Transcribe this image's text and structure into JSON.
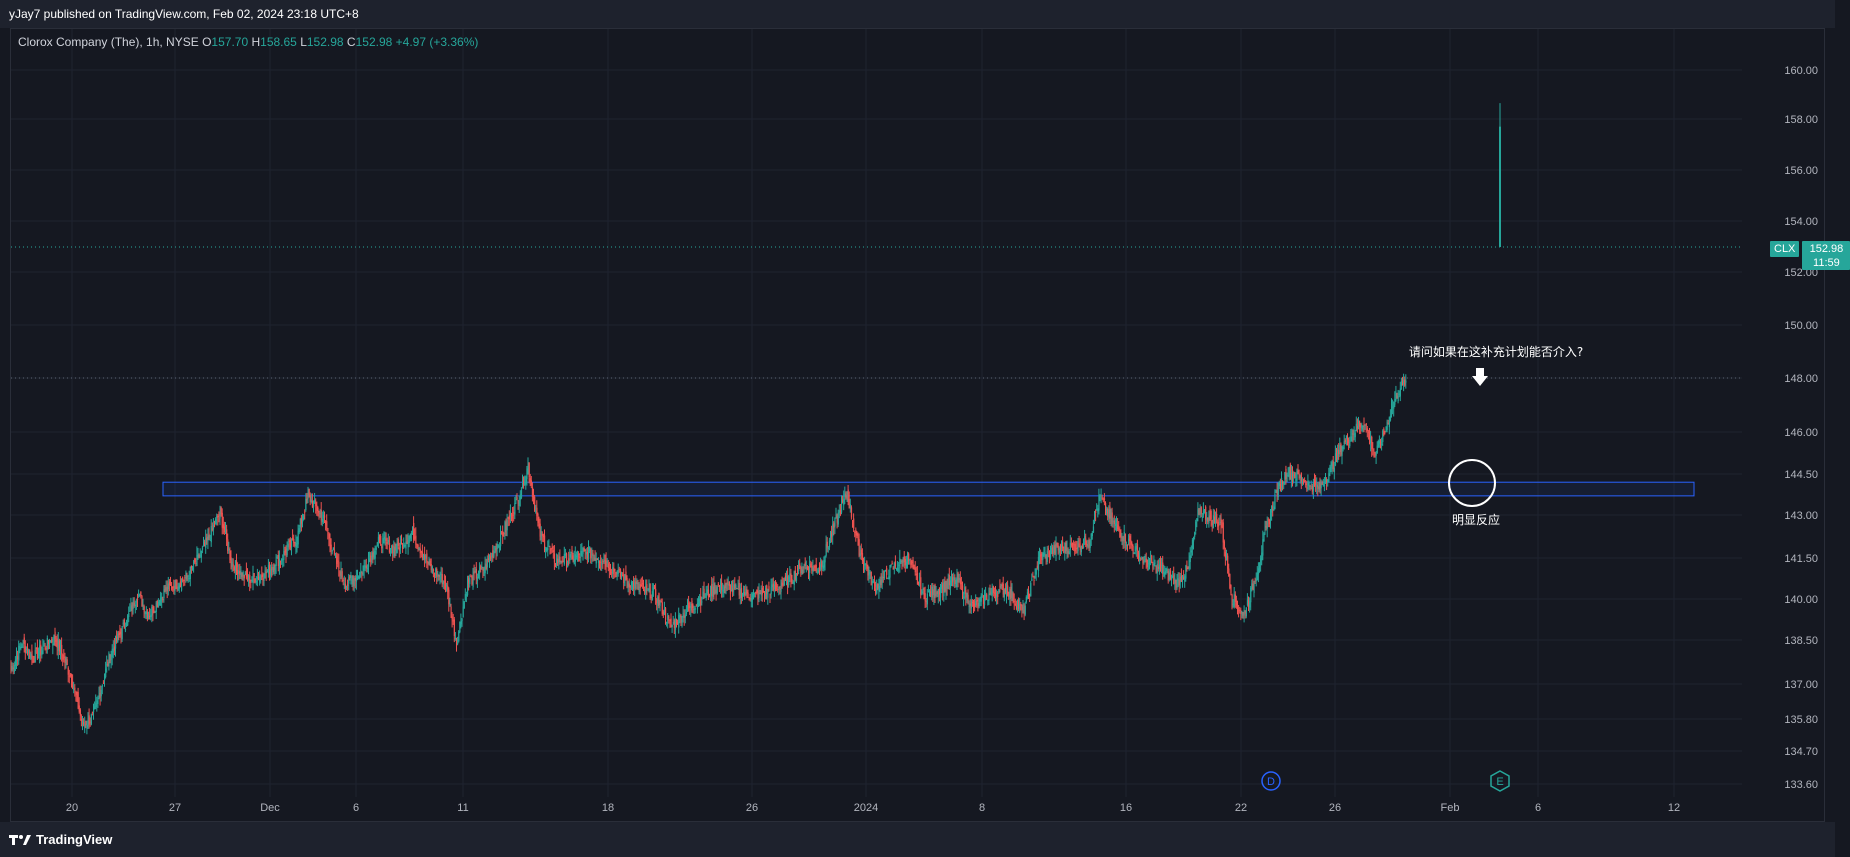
{
  "header": {
    "publisher_text": "yJay7 published on TradingView.com, Feb 02, 2024 23:18 UTC+8"
  },
  "legend": {
    "symbol_text": "Clorox Company (The), 1h, NYSE",
    "open_label": "O",
    "open_value": "157.70",
    "high_label": "H",
    "high_value": "158.65",
    "low_label": "L",
    "low_value": "152.98",
    "close_label": "C",
    "close_value": "152.98",
    "change": "+4.97 (+3.36%)"
  },
  "price_tag": {
    "symbol": "CLX",
    "price": "152.98",
    "countdown": "11:59"
  },
  "footer": {
    "brand": "TradingView"
  },
  "colors": {
    "background": "#151821",
    "up": "#26a69a",
    "down": "#ef5350",
    "zone": "#2962ff",
    "annotation": "#ffffff",
    "grid": "#1f2330",
    "axis_text": "#b2b5be"
  },
  "chart_data": {
    "type": "candlestick",
    "title": "",
    "y_ticks": [
      "160.00",
      "158.00",
      "156.00",
      "154.00",
      "152.00",
      "150.00",
      "148.00",
      "146.00",
      "144.50",
      "143.00",
      "141.50",
      "140.00",
      "138.50",
      "137.00",
      "135.80",
      "134.70",
      "133.60"
    ],
    "x_ticks": [
      "20",
      "27",
      "Dec",
      "6",
      "11",
      "18",
      "26",
      "2024",
      "8",
      "16",
      "22",
      "26",
      "Feb",
      "6",
      "12"
    ],
    "ylim": [
      133.1,
      161.1
    ],
    "support_zone": [
      143.7,
      144.2
    ],
    "current_price": 152.98,
    "horizontal_level": 148.0,
    "annotations": [
      {
        "text": "请问如果在这补充计划能否介入?",
        "role": "question"
      },
      {
        "text": "明显反应",
        "role": "circle-label"
      }
    ],
    "event_markers": [
      "D",
      "E"
    ],
    "close_path": [
      [
        0,
        137.5
      ],
      [
        10,
        138.4
      ],
      [
        20,
        137.9
      ],
      [
        40,
        138.6
      ],
      [
        55,
        137.2
      ],
      [
        65,
        135.6
      ],
      [
        75,
        135.9
      ],
      [
        90,
        138.0
      ],
      [
        105,
        139.2
      ],
      [
        115,
        140.2
      ],
      [
        125,
        139.4
      ],
      [
        140,
        140.3
      ],
      [
        160,
        140.8
      ],
      [
        175,
        141.8
      ],
      [
        190,
        143.1
      ],
      [
        200,
        141.4
      ],
      [
        215,
        140.7
      ],
      [
        230,
        140.9
      ],
      [
        245,
        141.5
      ],
      [
        260,
        142.2
      ],
      [
        270,
        143.7
      ],
      [
        285,
        142.8
      ],
      [
        295,
        141.4
      ],
      [
        305,
        140.5
      ],
      [
        320,
        141.1
      ],
      [
        335,
        142.1
      ],
      [
        350,
        141.8
      ],
      [
        365,
        142.4
      ],
      [
        380,
        141.2
      ],
      [
        395,
        140.6
      ],
      [
        405,
        138.4
      ],
      [
        415,
        140.6
      ],
      [
        430,
        141.1
      ],
      [
        445,
        142.2
      ],
      [
        460,
        143.5
      ],
      [
        470,
        144.8
      ],
      [
        480,
        142.4
      ],
      [
        495,
        141.4
      ],
      [
        510,
        141.5
      ],
      [
        525,
        141.7
      ],
      [
        540,
        141.4
      ],
      [
        555,
        140.8
      ],
      [
        570,
        140.4
      ],
      [
        585,
        140.2
      ],
      [
        600,
        139.0
      ],
      [
        615,
        139.6
      ],
      [
        630,
        140.1
      ],
      [
        645,
        140.5
      ],
      [
        660,
        140.3
      ],
      [
        675,
        140.1
      ],
      [
        690,
        140.3
      ],
      [
        705,
        140.6
      ],
      [
        720,
        141.2
      ],
      [
        735,
        141.1
      ],
      [
        750,
        142.8
      ],
      [
        760,
        143.8
      ],
      [
        770,
        141.9
      ],
      [
        785,
        140.4
      ],
      [
        800,
        141.1
      ],
      [
        815,
        141.5
      ],
      [
        830,
        140.1
      ],
      [
        845,
        140.4
      ],
      [
        860,
        140.7
      ],
      [
        875,
        139.7
      ],
      [
        890,
        140.2
      ],
      [
        905,
        140.4
      ],
      [
        920,
        139.5
      ],
      [
        935,
        141.5
      ],
      [
        950,
        141.8
      ],
      [
        965,
        141.9
      ],
      [
        980,
        142.1
      ],
      [
        990,
        143.7
      ],
      [
        1000,
        142.8
      ],
      [
        1015,
        142.1
      ],
      [
        1030,
        141.4
      ],
      [
        1045,
        141.1
      ],
      [
        1060,
        140.6
      ],
      [
        1070,
        141.1
      ],
      [
        1080,
        143.2
      ],
      [
        1090,
        142.9
      ],
      [
        1100,
        142.7
      ],
      [
        1110,
        140.1
      ],
      [
        1120,
        139.4
      ],
      [
        1130,
        140.6
      ],
      [
        1140,
        142.3
      ],
      [
        1150,
        143.8
      ],
      [
        1160,
        144.6
      ],
      [
        1170,
        144.4
      ],
      [
        1180,
        144.1
      ],
      [
        1190,
        144.0
      ],
      [
        1200,
        144.7
      ],
      [
        1210,
        145.5
      ],
      [
        1220,
        146.0
      ],
      [
        1230,
        146.4
      ],
      [
        1240,
        145.2
      ],
      [
        1248,
        145.9
      ],
      [
        1255,
        146.9
      ],
      [
        1262,
        147.6
      ],
      [
        1268,
        147.9
      ]
    ],
    "final_bar": {
      "open": 157.7,
      "high": 158.65,
      "low": 152.98,
      "close": 152.98
    }
  }
}
